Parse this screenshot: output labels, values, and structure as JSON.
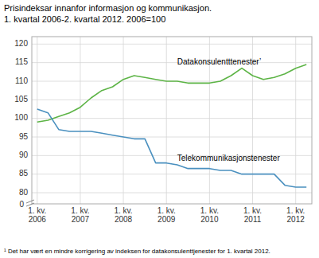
{
  "chart_data": {
    "type": "line",
    "title": "Prisindeksar innanfor informasjon og kommunikasjon.",
    "subtitle": "1. kvartal 2006-2. kvartal 2012. 2006=100",
    "annotations": [
      "¹ Det har vært en mindre korrigering av indeksen for datakonsulenttjenester for 1. kvartal 2012.",
      "0"
    ],
    "categories": [
      "1. kv.\n2006",
      null,
      null,
      null,
      "1. kv.\n2007",
      null,
      null,
      null,
      "1. kv.\n2008",
      null,
      null,
      null,
      "1. kv.\n2009",
      null,
      null,
      null,
      "1. kv.\n2010",
      null,
      null,
      null,
      "1. kv.\n2011",
      null,
      null,
      null,
      "1. kv.\n2012",
      null
    ],
    "series": [
      {
        "name": "Datakonsulentttenester’",
        "color": "#5db446",
        "values": [
          99.0,
          99.5,
          100.5,
          101.5,
          103.0,
          105.5,
          107.5,
          108.5,
          110.5,
          111.5,
          111.0,
          110.5,
          110.0,
          110.0,
          109.5,
          109.5,
          109.5,
          110.0,
          111.5,
          113.5,
          111.5,
          110.5,
          111.0,
          112.0,
          113.5,
          114.5
        ]
      },
      {
        "name": "Telekommunikasjonstenester",
        "color": "#4a90bf",
        "values": [
          102.5,
          101.5,
          97.0,
          96.5,
          96.5,
          96.5,
          96.0,
          95.5,
          95.0,
          94.5,
          94.5,
          88.0,
          88.0,
          87.5,
          86.5,
          86.5,
          86.5,
          86.0,
          86.0,
          85.0,
          85.0,
          85.0,
          85.0,
          82.0,
          81.5,
          81.5
        ]
      }
    ],
    "ylim": [
      77,
      122
    ],
    "yticks": [
      80,
      85,
      90,
      95,
      100,
      105,
      110,
      115,
      120
    ],
    "grid": true
  }
}
